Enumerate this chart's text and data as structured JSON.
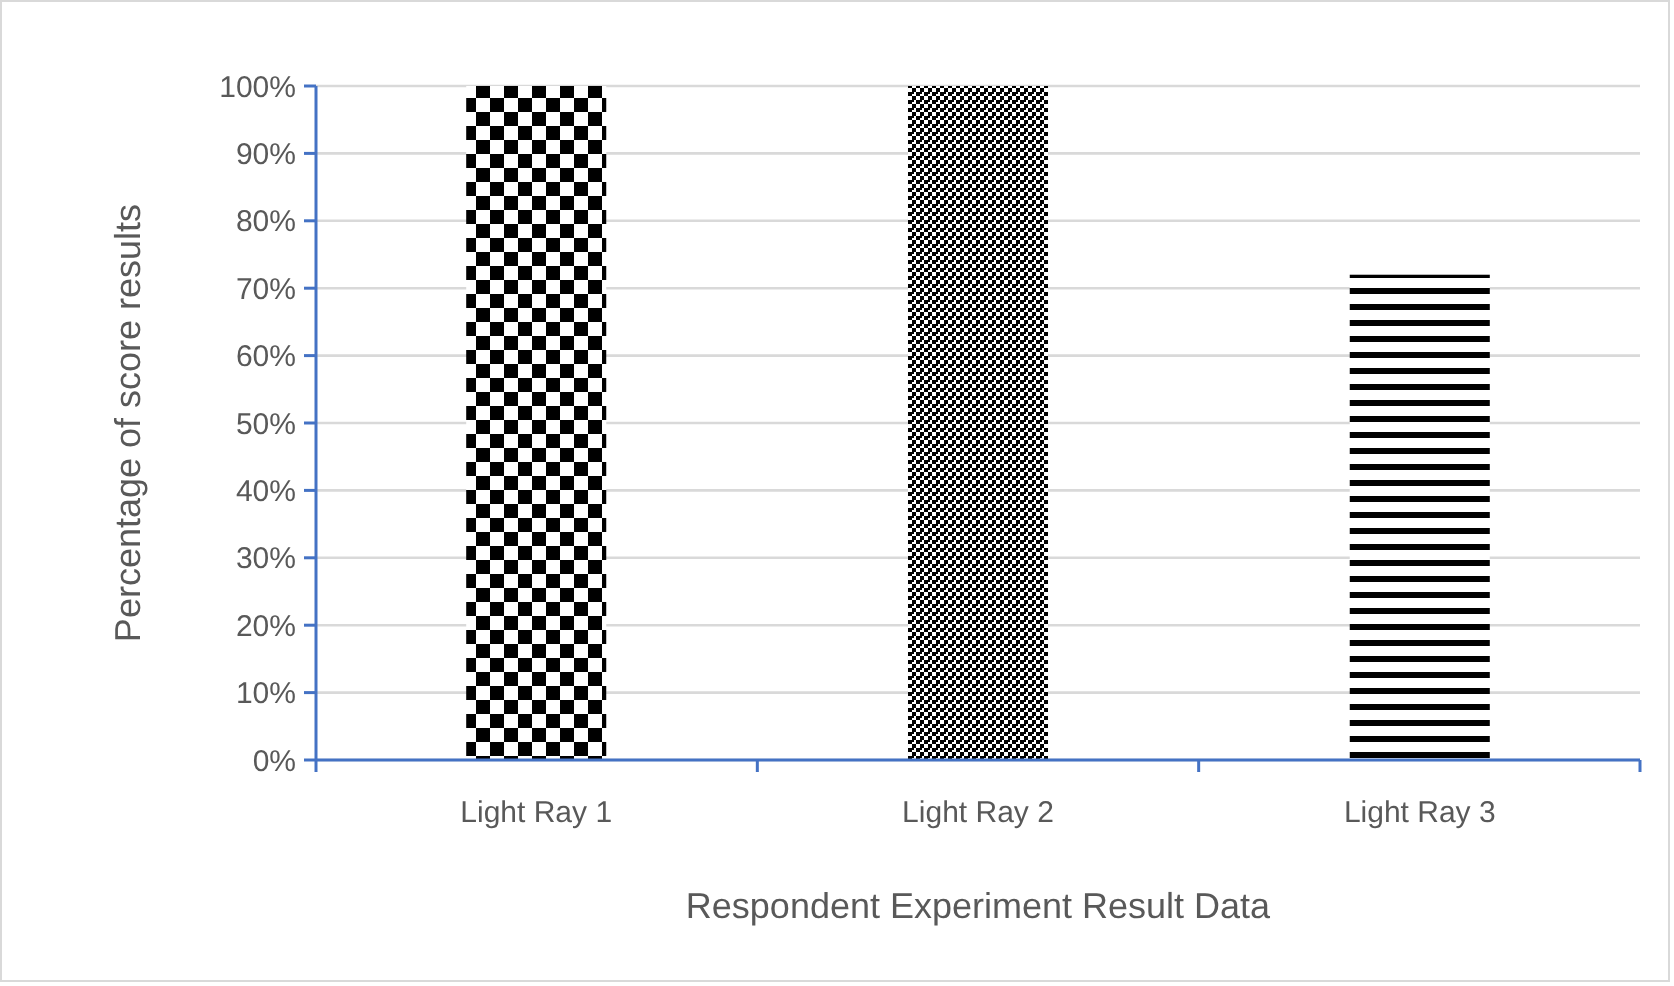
{
  "chart_data": {
    "type": "bar",
    "xlabel": "Respondent Experiment Result Data",
    "ylabel": "Percentage of score results",
    "categories": [
      "Light Ray 1",
      "Light Ray 2",
      "Light Ray 3"
    ],
    "values": [
      100,
      100,
      72
    ],
    "colors": [
      "#000000",
      "#000000",
      "#000000"
    ],
    "ylim": [
      0,
      100
    ],
    "yticks": [
      {
        "value": 0,
        "label": "0%"
      },
      {
        "value": 10,
        "label": "10%"
      },
      {
        "value": 20,
        "label": "20%"
      },
      {
        "value": 30,
        "label": "30%"
      },
      {
        "value": 40,
        "label": "40%"
      },
      {
        "value": 50,
        "label": "50%"
      },
      {
        "value": 60,
        "label": "60%"
      },
      {
        "value": 70,
        "label": "70%"
      },
      {
        "value": 80,
        "label": "80%"
      },
      {
        "value": 90,
        "label": "90%"
      },
      {
        "value": 100,
        "label": "100%"
      }
    ],
    "grid": "y"
  }
}
